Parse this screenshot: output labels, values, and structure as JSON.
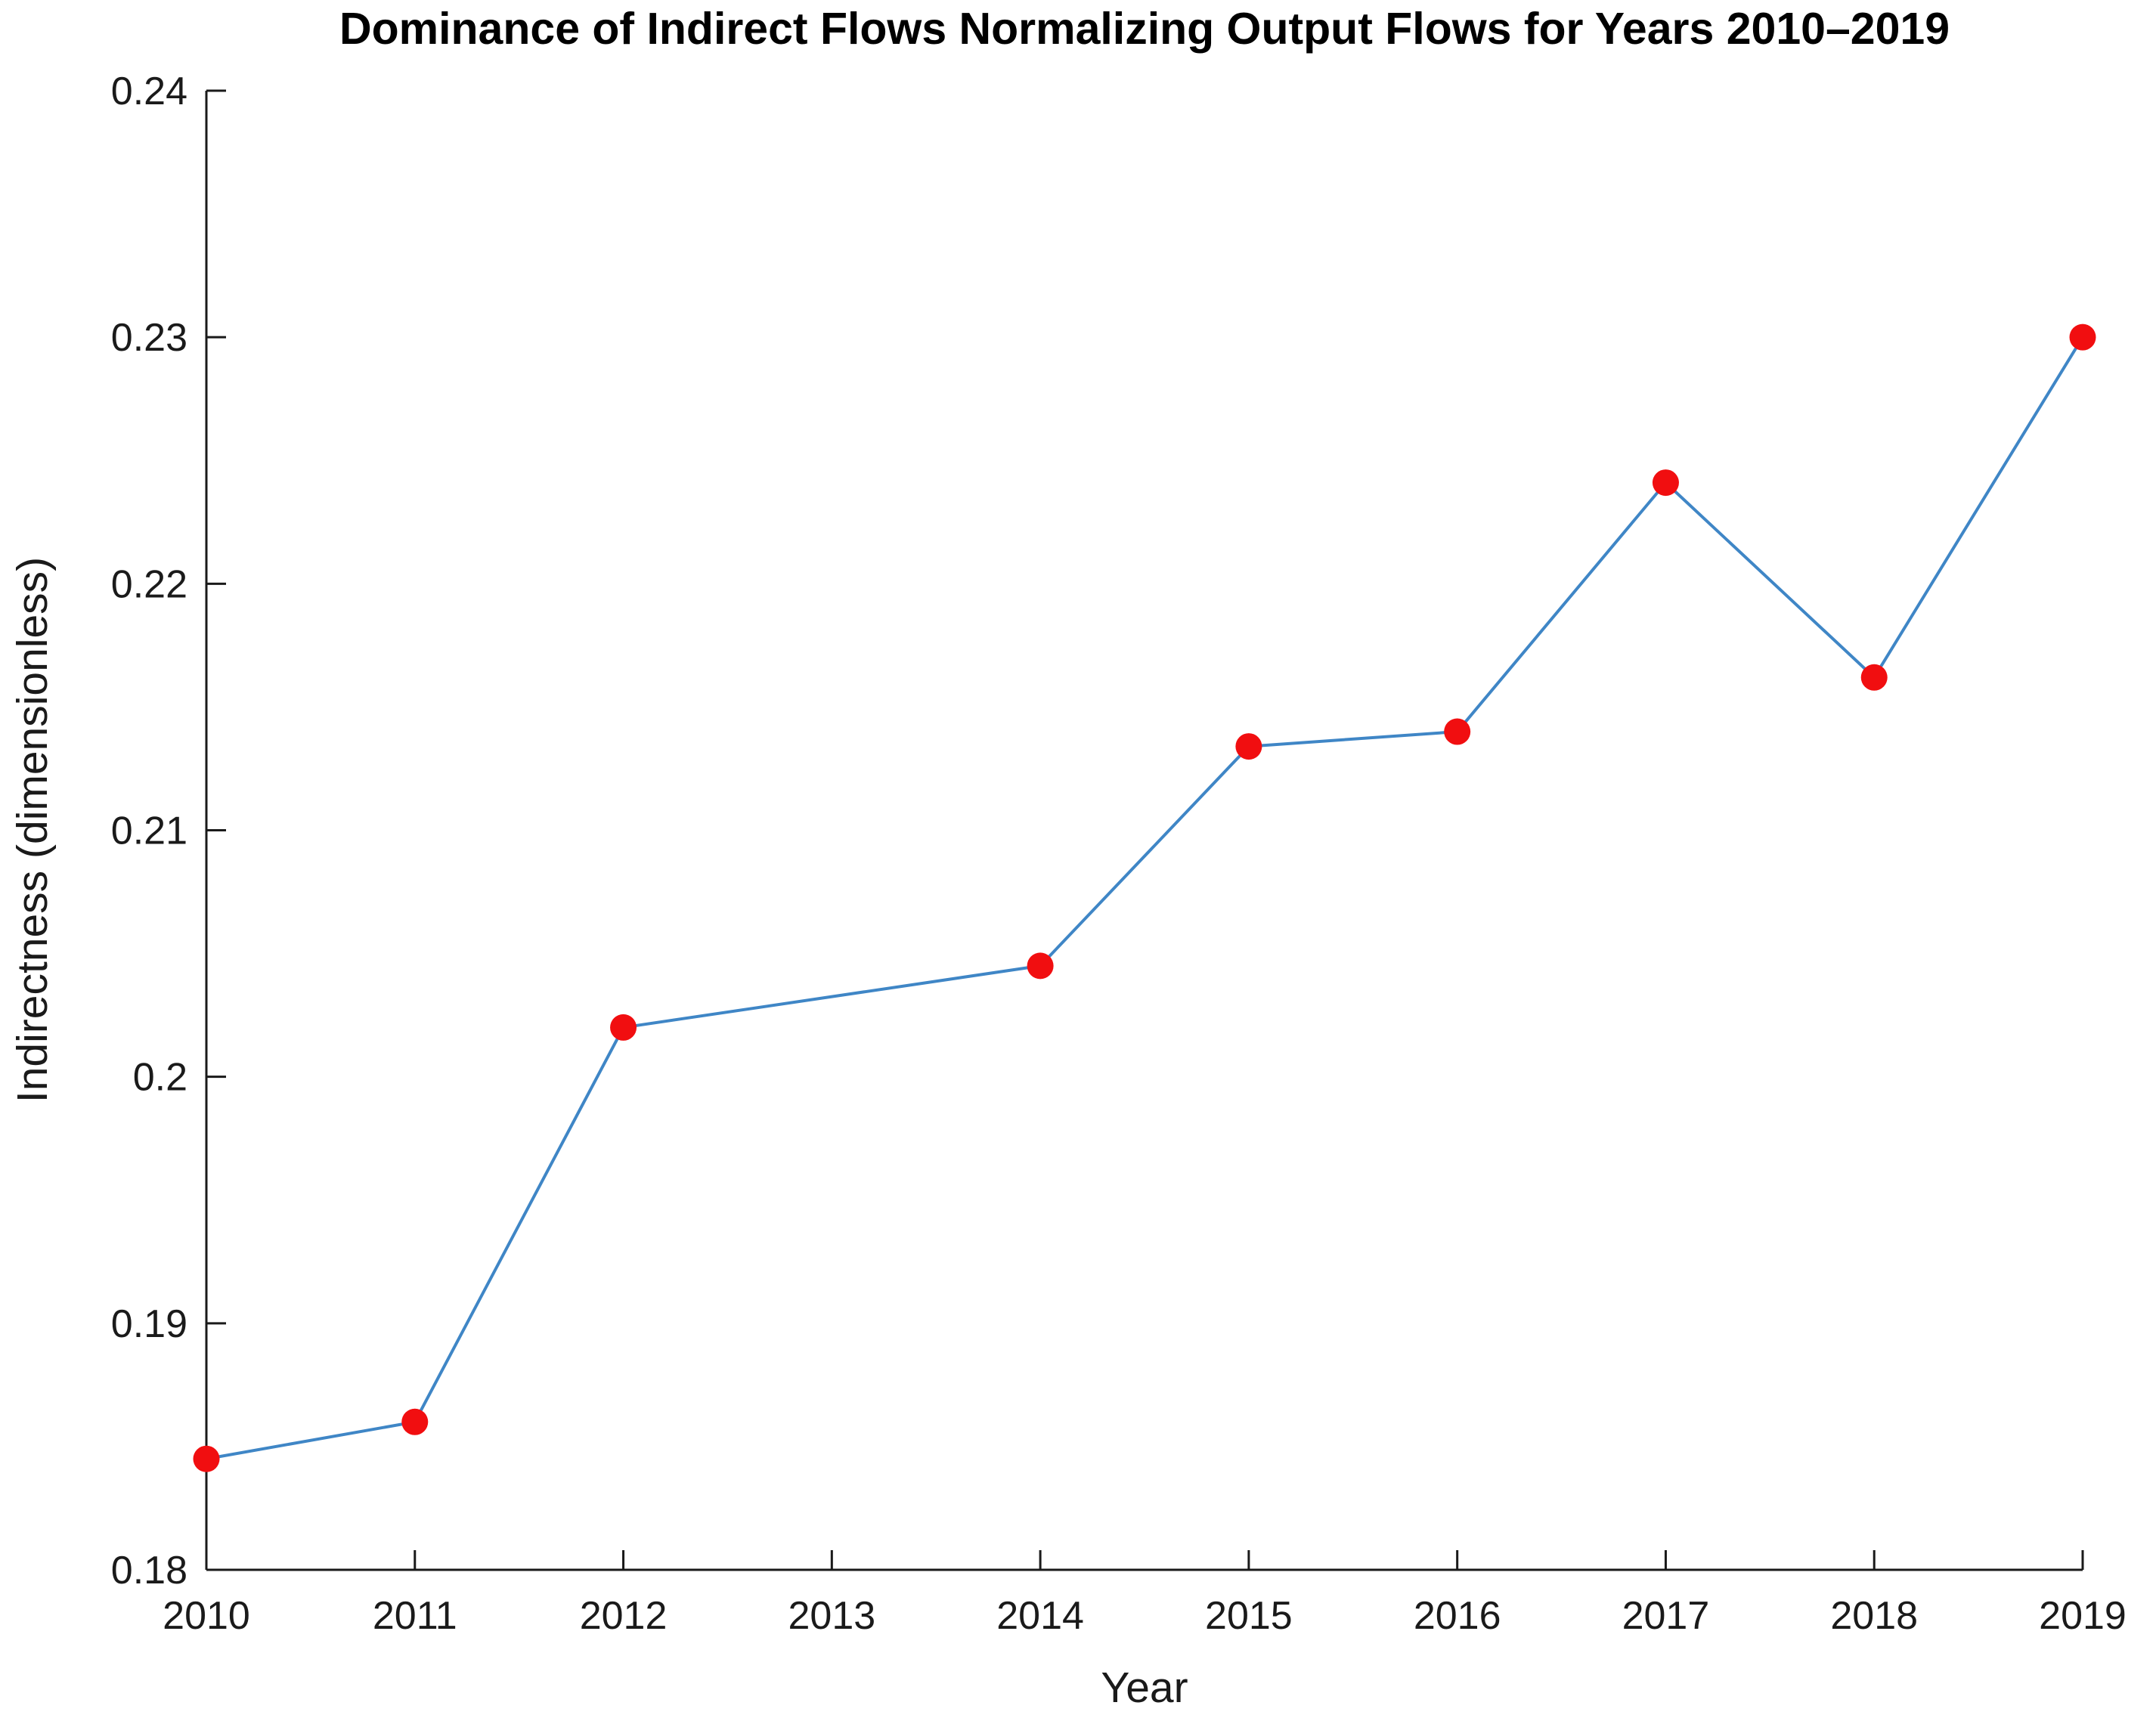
{
  "chart_data": {
    "type": "line",
    "title": "Dominance of Indirect Flows Normalizing Output Flows for Years 2010–2019",
    "xlabel": "Year",
    "ylabel": "Indirectness (dimensionless)",
    "x": [
      2010,
      2011,
      2012,
      2014,
      2015,
      2016,
      2017,
      2018,
      2019
    ],
    "values": [
      0.1845,
      0.186,
      0.202,
      0.2045,
      0.2134,
      0.214,
      0.2241,
      0.2162,
      0.23
    ],
    "series_name": "Indirectness",
    "xlim": [
      2010,
      2019
    ],
    "ylim": [
      0.18,
      0.24
    ],
    "xticks": [
      2010,
      2011,
      2012,
      2013,
      2014,
      2015,
      2016,
      2017,
      2018,
      2019
    ],
    "xtick_labels": [
      "2010",
      "2011",
      "2012",
      "2013",
      "2014",
      "2015",
      "2016",
      "2017",
      "2018",
      "2019"
    ],
    "yticks": [
      0.18,
      0.19,
      0.2,
      0.21,
      0.22,
      0.23,
      0.24
    ],
    "ytick_labels": [
      "0.18",
      "0.19",
      "0.2",
      "0.21",
      "0.22",
      "0.23",
      "0.24"
    ],
    "grid": false,
    "legend": "none",
    "box": false,
    "tick_direction": "in",
    "line_color": "#3f86c6",
    "marker_color": "#f10e10",
    "axis_color": "#1a1a1a",
    "background_color": "#ffffff",
    "marker_style": "filled-circle"
  }
}
